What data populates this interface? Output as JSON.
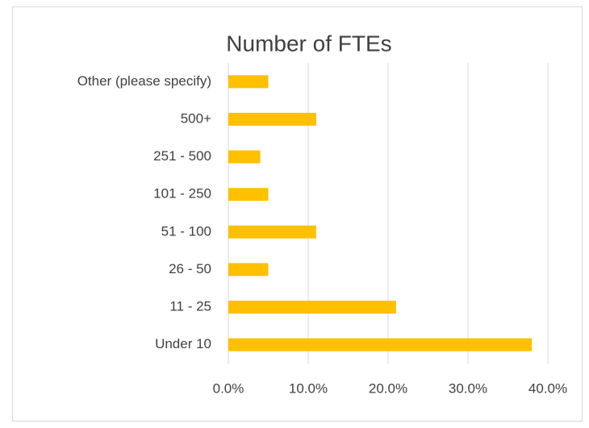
{
  "chart_data": {
    "type": "bar",
    "orientation": "horizontal",
    "title": "Number of FTEs",
    "categories": [
      "Under 10",
      "11 - 25",
      "26 - 50",
      "51 - 100",
      "101 - 250",
      "251 - 500",
      "500+",
      "Other (please specify)"
    ],
    "values": [
      38,
      21,
      5,
      11,
      5,
      4,
      11,
      5
    ],
    "color": "#ffc000",
    "xlim": [
      0,
      40
    ],
    "xticks": [
      {
        "value": 0,
        "label": "0.0%"
      },
      {
        "value": 10,
        "label": "10.0%"
      },
      {
        "value": 20,
        "label": "20.0%"
      },
      {
        "value": 30,
        "label": "30.0%"
      },
      {
        "value": 40,
        "label": "40.0%"
      }
    ],
    "grid": true
  }
}
